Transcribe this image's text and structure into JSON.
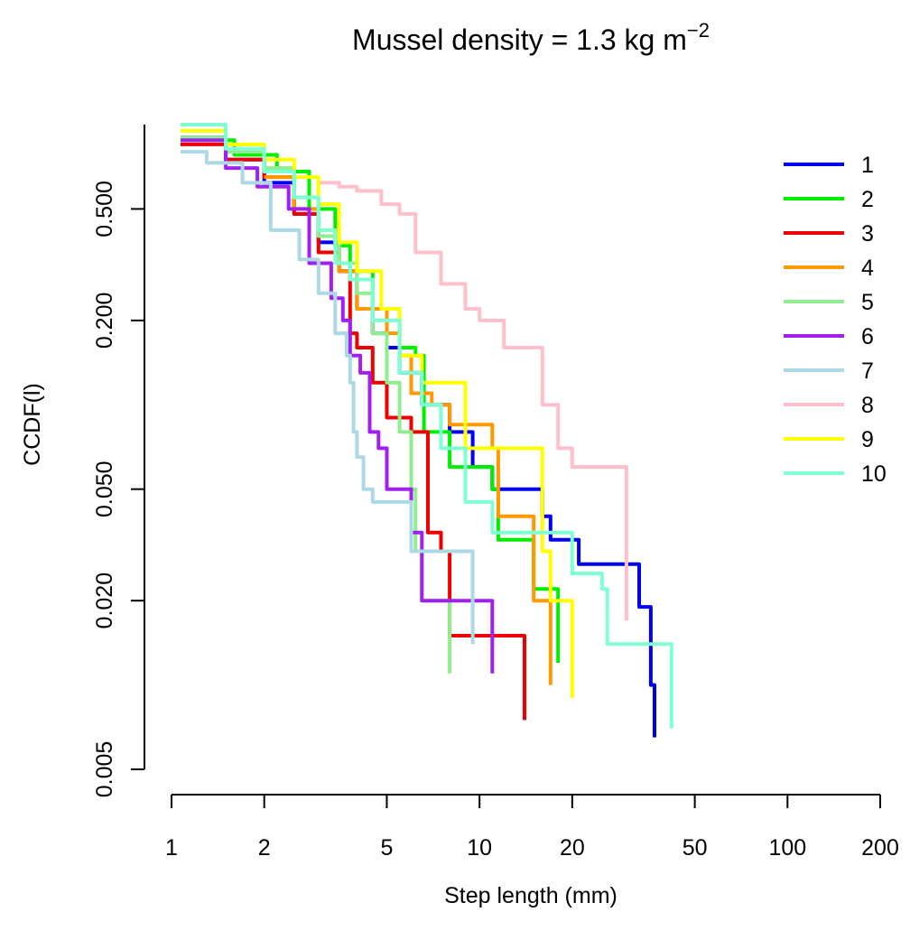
{
  "chart_data": {
    "type": "line",
    "title_main": "Mussel density = 1.3 kg m",
    "title_sup": "−2",
    "xlabel": "Step length (mm)",
    "ylabel": "CCDF(l)",
    "x_scale": "log",
    "y_scale": "log",
    "xlim": [
      1,
      200
    ],
    "ylim": [
      0.005,
      1.0
    ],
    "x_ticks": [
      1,
      2,
      5,
      10,
      20,
      50,
      100,
      200
    ],
    "x_tick_labels": [
      "1",
      "2",
      "5",
      "10",
      "20",
      "50",
      "100",
      "200"
    ],
    "y_ticks": [
      0.005,
      0.02,
      0.05,
      0.2,
      0.5
    ],
    "y_tick_labels": [
      "0.005",
      "0.020",
      "0.050",
      "0.200",
      "0.500"
    ],
    "grid": false,
    "legend_position": "right",
    "series": [
      {
        "name": "1",
        "color": "#0000ee",
        "x": [
          1.07,
          1.5,
          2.0,
          2.5,
          3.0,
          3.5,
          4.0,
          4.5,
          5.0,
          5.5,
          6.5,
          8.0,
          9.5,
          11.0,
          16.0,
          17.0,
          21.0,
          33.0,
          36.0,
          37.0
        ],
        "y": [
          0.9,
          0.75,
          0.62,
          0.48,
          0.38,
          0.3,
          0.22,
          0.18,
          0.16,
          0.13,
          0.1,
          0.08,
          0.06,
          0.05,
          0.04,
          0.033,
          0.027,
          0.019,
          0.01,
          0.0065
        ]
      },
      {
        "name": "2",
        "color": "#00ee00",
        "x": [
          1.07,
          1.6,
          2.2,
          2.8,
          3.4,
          3.8,
          4.5,
          5.5,
          6.2,
          6.6,
          8.0,
          11.0,
          11.5,
          15.0,
          18.0
        ],
        "y": [
          0.88,
          0.78,
          0.68,
          0.5,
          0.37,
          0.3,
          0.22,
          0.16,
          0.15,
          0.08,
          0.06,
          0.05,
          0.033,
          0.022,
          0.012
        ]
      },
      {
        "name": "3",
        "color": "#ee0000",
        "x": [
          1.07,
          1.5,
          2.0,
          2.5,
          3.0,
          3.5,
          3.8,
          4.0,
          4.5,
          5.0,
          6.0,
          6.8,
          7.5,
          8.0,
          14.0
        ],
        "y": [
          0.85,
          0.75,
          0.65,
          0.48,
          0.35,
          0.3,
          0.18,
          0.16,
          0.12,
          0.09,
          0.08,
          0.035,
          0.03,
          0.015,
          0.0075
        ]
      },
      {
        "name": "4",
        "color": "#ff9900",
        "x": [
          2.0,
          2.5,
          3.0,
          3.5,
          4.0,
          5.0,
          5.5,
          6.0,
          7.0,
          8.0,
          11.0,
          11.5,
          15.0,
          17.0
        ],
        "y": [
          0.65,
          0.5,
          0.42,
          0.3,
          0.22,
          0.18,
          0.15,
          0.11,
          0.1,
          0.085,
          0.07,
          0.04,
          0.02,
          0.01
        ]
      },
      {
        "name": "5",
        "color": "#90ee90",
        "x": [
          1.07,
          1.5,
          2.0,
          2.5,
          3.0,
          3.5,
          4.0,
          4.5,
          5.0,
          5.5,
          6.0,
          6.2,
          6.5,
          8.0
        ],
        "y": [
          0.9,
          0.8,
          0.7,
          0.55,
          0.4,
          0.32,
          0.25,
          0.18,
          0.12,
          0.08,
          0.05,
          0.03,
          0.02,
          0.011
        ]
      },
      {
        "name": "6",
        "color": "#a020f0",
        "x": [
          1.07,
          1.5,
          1.9,
          2.4,
          2.8,
          3.3,
          3.6,
          3.8,
          4.1,
          4.4,
          4.7,
          5.0,
          6.0,
          6.5,
          11.0
        ],
        "y": [
          0.88,
          0.7,
          0.6,
          0.5,
          0.32,
          0.24,
          0.2,
          0.15,
          0.13,
          0.08,
          0.07,
          0.05,
          0.035,
          0.02,
          0.011
        ]
      },
      {
        "name": "7",
        "color": "#add8e6",
        "x": [
          1.07,
          1.3,
          1.7,
          2.1,
          2.6,
          3.0,
          3.4,
          3.7,
          3.8,
          3.9,
          4.0,
          4.2,
          4.5,
          6.0,
          9.5
        ],
        "y": [
          0.8,
          0.73,
          0.62,
          0.42,
          0.33,
          0.25,
          0.18,
          0.15,
          0.12,
          0.08,
          0.065,
          0.05,
          0.045,
          0.03,
          0.014
        ]
      },
      {
        "name": "8",
        "color": "#ffc0cb",
        "x": [
          3.0,
          3.5,
          4.0,
          4.8,
          5.5,
          6.2,
          7.5,
          9.0,
          10.0,
          12.0,
          16.0,
          18.0,
          20.0,
          30.0
        ],
        "y": [
          0.62,
          0.6,
          0.58,
          0.52,
          0.48,
          0.35,
          0.27,
          0.22,
          0.2,
          0.16,
          0.1,
          0.07,
          0.06,
          0.017
        ]
      },
      {
        "name": "9",
        "color": "#ffff00",
        "x": [
          1.07,
          1.5,
          2.0,
          2.5,
          3.0,
          3.5,
          4.0,
          4.8,
          5.5,
          6.5,
          9.0,
          16.0,
          17.0,
          20.0
        ],
        "y": [
          0.95,
          0.85,
          0.75,
          0.65,
          0.52,
          0.38,
          0.3,
          0.22,
          0.15,
          0.12,
          0.07,
          0.03,
          0.02,
          0.009
        ]
      },
      {
        "name": "10",
        "color": "#7fffd4",
        "x": [
          1.07,
          1.5,
          2.0,
          2.5,
          3.0,
          3.4,
          3.8,
          4.5,
          5.5,
          6.5,
          7.5,
          9.0,
          11.0,
          20.0,
          25.0,
          26.0,
          42.0
        ],
        "y": [
          1.0,
          0.82,
          0.68,
          0.55,
          0.42,
          0.32,
          0.28,
          0.2,
          0.13,
          0.1,
          0.07,
          0.045,
          0.035,
          0.025,
          0.022,
          0.014,
          0.007
        ]
      }
    ]
  }
}
